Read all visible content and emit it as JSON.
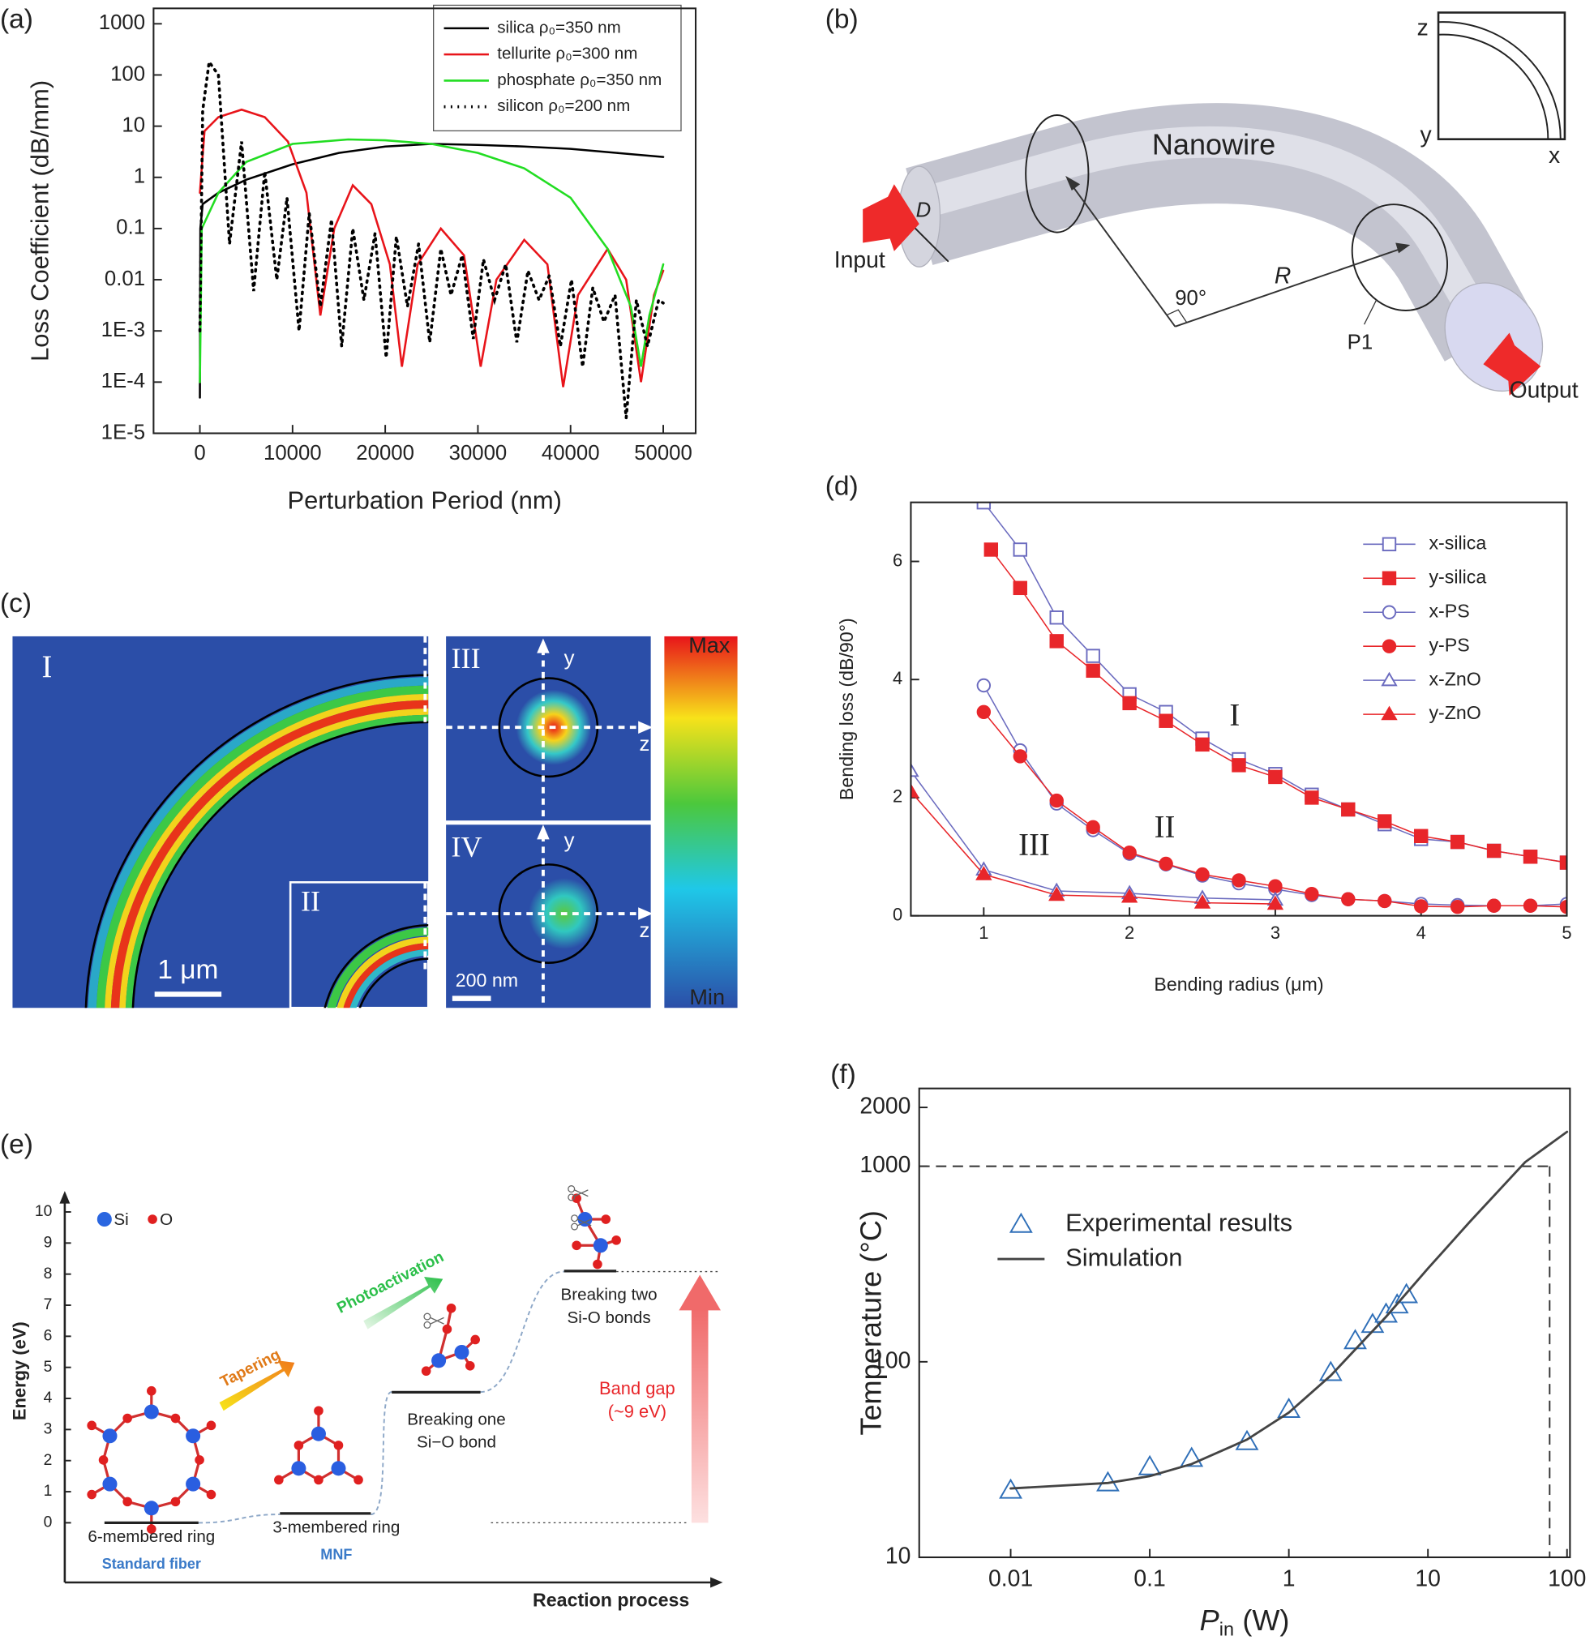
{
  "chart_data": [
    {
      "type": "line",
      "panel": "(a)",
      "xlabel": "Perturbation Period (nm)",
      "ylabel": "Loss Coefficient (dB/mm)",
      "xlim": [
        -5000,
        53500
      ],
      "ylim": [
        1e-05,
        2000
      ],
      "ylog": true,
      "xticks": [
        0,
        10000,
        20000,
        30000,
        40000,
        50000
      ],
      "yticks": [
        {
          "value": 1e-05,
          "label": "1E-5"
        },
        {
          "value": 0.0001,
          "label": "1E-4"
        },
        {
          "value": 0.001,
          "label": "1E-3"
        },
        0.01,
        0.1,
        1,
        10,
        100,
        1000
      ],
      "legend": "upper right",
      "series": [
        {
          "name": "silica ρ₀=350 nm",
          "color": "#000000",
          "linestyle": "solid",
          "marker": "none",
          "x": [
            0,
            50,
            300,
            2000,
            5000,
            10000,
            15000,
            20000,
            25000,
            30000,
            35000,
            40000,
            45000,
            50000
          ],
          "values": [
            5e-05,
            0.1,
            0.3,
            0.5,
            0.9,
            1.8,
            3,
            4,
            4.5,
            4.3,
            4,
            3.6,
            3,
            2.5
          ]
        },
        {
          "name": "tellurite ρ₀=300 nm",
          "color": "#e8141a",
          "linestyle": "solid",
          "marker": "none",
          "x": [
            0,
            500,
            2000,
            4500,
            7000,
            9500,
            11500,
            13000,
            14500,
            16500,
            18500,
            20500,
            21800,
            23500,
            26000,
            28500,
            30300,
            32000,
            35000,
            37500,
            39200,
            40800,
            44000,
            46000,
            47600,
            49000,
            50000
          ],
          "values": [
            0.5,
            8,
            15,
            21,
            15,
            5,
            0.5,
            0.002,
            0.1,
            0.7,
            0.3,
            0.02,
            0.0002,
            0.02,
            0.1,
            0.03,
            0.0002,
            0.01,
            0.06,
            0.02,
            8e-05,
            0.005,
            0.04,
            0.01,
            0.0001,
            0.005,
            0.015
          ]
        },
        {
          "name": "phosphate ρ₀=350 nm",
          "color": "#22dd22",
          "linestyle": "solid",
          "marker": "none",
          "x": [
            0,
            200,
            2000,
            5000,
            10000,
            16000,
            20000,
            25000,
            30000,
            35000,
            40000,
            44000,
            46500,
            47600,
            48500,
            50000
          ],
          "values": [
            0.0001,
            0.1,
            0.5,
            2,
            4.5,
            5.5,
            5.3,
            4.5,
            3,
            1.5,
            0.4,
            0.04,
            0.003,
            0.0002,
            0.002,
            0.02
          ]
        },
        {
          "name": "silicon ρ₀=200 nm",
          "color": "#000000",
          "linestyle": "dotted",
          "marker": "none",
          "x": [
            0,
            300,
            1000,
            2000,
            3200,
            4500,
            5800,
            7000,
            8300,
            9400,
            10700,
            11800,
            13000,
            14200,
            15300,
            16500,
            17700,
            18900,
            20100,
            21200,
            22400,
            23600,
            24800,
            26000,
            27100,
            28300,
            29500,
            30600,
            31800,
            33000,
            34200,
            35400,
            36600,
            37700,
            38900,
            40100,
            41300,
            42400,
            43600,
            44800,
            46000,
            47100,
            48300,
            49500,
            50000
          ],
          "values": [
            0.001,
            20,
            180,
            100,
            0.05,
            5,
            0.006,
            1.3,
            0.01,
            0.4,
            0.001,
            0.2,
            0.003,
            0.15,
            0.0005,
            0.1,
            0.004,
            0.08,
            0.0003,
            0.07,
            0.003,
            0.05,
            0.0006,
            0.04,
            0.005,
            0.03,
            0.0007,
            0.025,
            0.004,
            0.02,
            0.0006,
            0.015,
            0.004,
            0.012,
            0.0005,
            0.01,
            0.0002,
            0.007,
            0.0015,
            0.005,
            2e-05,
            0.004,
            0.0005,
            0.004,
            0.0035
          ]
        }
      ]
    },
    {
      "type": "line",
      "panel": "(d)",
      "xlabel": "Bending radius (μm)",
      "ylabel": "Bending loss (dB/90°)",
      "xlim": [
        0.5,
        5
      ],
      "ylim": [
        0,
        7
      ],
      "xticks": [
        1,
        2,
        3,
        4,
        5
      ],
      "yticks": [
        0,
        2,
        4,
        6
      ],
      "legend": "upper right",
      "annotations": [
        "I",
        "II",
        "III"
      ],
      "series": [
        {
          "name": "x-silica",
          "color": "#6b6bbf",
          "linestyle": "solid",
          "marker": "open-square",
          "x": [
            1,
            1.25,
            1.5,
            1.75,
            2,
            2.25,
            2.5,
            2.75,
            3,
            3.25,
            3.5,
            3.75,
            4,
            4.25,
            4.5,
            4.75,
            5
          ],
          "values": [
            7.0,
            6.2,
            5.05,
            4.4,
            3.75,
            3.45,
            3.0,
            2.65,
            2.4,
            2.05,
            1.8,
            1.55,
            1.3,
            1.25,
            1.1,
            1.0,
            0.9
          ]
        },
        {
          "name": "y-silica",
          "color": "#e8262a",
          "linestyle": "solid",
          "marker": "filled-square",
          "x": [
            1.05,
            1.25,
            1.5,
            1.75,
            2,
            2.25,
            2.5,
            2.75,
            3,
            3.25,
            3.5,
            3.75,
            4,
            4.25,
            4.5,
            4.75,
            5
          ],
          "values": [
            6.2,
            5.55,
            4.65,
            4.15,
            3.6,
            3.3,
            2.9,
            2.55,
            2.35,
            2.0,
            1.8,
            1.6,
            1.35,
            1.25,
            1.1,
            1.0,
            0.9
          ]
        },
        {
          "name": "x-PS",
          "color": "#6b6bbf",
          "linestyle": "solid",
          "marker": "open-circle",
          "x": [
            1,
            1.25,
            1.5,
            1.75,
            2,
            2.25,
            2.5,
            2.75,
            3,
            3.25,
            3.5,
            3.75,
            4,
            4.25,
            4.5,
            4.75,
            5
          ],
          "values": [
            3.9,
            2.8,
            1.9,
            1.45,
            1.05,
            0.87,
            0.68,
            0.55,
            0.45,
            0.35,
            0.28,
            0.25,
            0.2,
            0.18,
            0.17,
            0.17,
            0.2
          ]
        },
        {
          "name": "y-PS",
          "color": "#e8262a",
          "linestyle": "solid",
          "marker": "filled-circle",
          "x": [
            1,
            1.25,
            1.5,
            1.75,
            2,
            2.25,
            2.5,
            2.75,
            3,
            3.25,
            3.5,
            3.75,
            4,
            4.25,
            4.5,
            4.75,
            5
          ],
          "values": [
            3.45,
            2.7,
            1.95,
            1.5,
            1.07,
            0.88,
            0.7,
            0.6,
            0.5,
            0.37,
            0.28,
            0.25,
            0.16,
            0.15,
            0.17,
            0.17,
            0.15
          ]
        },
        {
          "name": "x-ZnO",
          "color": "#6b6bbf",
          "linestyle": "solid",
          "marker": "open-triangle",
          "x": [
            0.5,
            1,
            1.5,
            2,
            2.5,
            3
          ],
          "values": [
            2.45,
            0.78,
            0.42,
            0.38,
            0.3,
            0.27
          ]
        },
        {
          "name": "y-ZnO",
          "color": "#e8262a",
          "linestyle": "solid",
          "marker": "filled-triangle",
          "x": [
            0.5,
            1,
            1.5,
            2,
            2.5,
            3
          ],
          "values": [
            2.1,
            0.7,
            0.35,
            0.32,
            0.22,
            0.2
          ]
        }
      ]
    },
    {
      "type": "line",
      "panel": "(f)",
      "xlabel": "P",
      "xlabel_sub": "in",
      "xlabel_unit": "(W)",
      "ylabel": "Temperature (°C)",
      "xlim": [
        0.0022,
        105
      ],
      "ylim": [
        10,
        2500
      ],
      "xlog": true,
      "ylog": true,
      "xticks": [
        0.01,
        0.1,
        1,
        10,
        100
      ],
      "yticks": [
        10,
        100,
        1000,
        2000
      ],
      "legend": "upper left",
      "ref_lines": {
        "x": 75,
        "y": 1000
      },
      "series": [
        {
          "name": "Experimental results",
          "color": "#2f6fb8",
          "linestyle": "none",
          "marker": "open-triangle",
          "x": [
            0.01,
            0.05,
            0.1,
            0.2,
            0.5,
            1,
            2,
            3,
            4,
            5,
            6,
            7
          ],
          "values": [
            22,
            24,
            29,
            32,
            39,
            57,
            88,
            128,
            155,
            175,
            195,
            220
          ]
        },
        {
          "name": "Simulation",
          "color": "#444444",
          "linestyle": "solid",
          "marker": "none",
          "x": [
            0.01,
            0.05,
            0.1,
            0.2,
            0.5,
            1,
            2,
            5,
            10,
            20,
            50,
            100
          ],
          "values": [
            22.5,
            24,
            26,
            30,
            40,
            55,
            85,
            170,
            300,
            520,
            1050,
            1500
          ]
        }
      ]
    }
  ],
  "panel_b": {
    "label": "(b)",
    "title": "Nanowire",
    "input": "Input",
    "output": "Output",
    "d": "D",
    "r": "R",
    "angle": "90°",
    "point": "P1",
    "axes": [
      "z",
      "y",
      "x"
    ]
  },
  "panel_c": {
    "label": "(c)",
    "regions": [
      "I",
      "II",
      "III",
      "IV"
    ],
    "axes": [
      "y",
      "z",
      "y",
      "z"
    ],
    "scale_bars": [
      "1 μm",
      "200 nm"
    ],
    "colorbar": [
      "Max",
      "Min"
    ]
  },
  "panel_e": {
    "label": "(e)",
    "ylabel": "Energy  (eV)",
    "xlabel": "Reaction process",
    "yticks": [
      0,
      1,
      2,
      3,
      4,
      5,
      6,
      7,
      8,
      9,
      10
    ],
    "legend": [
      "Si",
      "O"
    ],
    "arrows": [
      "Tapering",
      "Photoactivation"
    ],
    "states": [
      {
        "name": [
          "6-membered ring"
        ],
        "sub": "Standard fiber",
        "energy": 0
      },
      {
        "name": [
          "3-membered ring"
        ],
        "sub": "MNF",
        "energy": 0.3
      },
      {
        "name": [
          "Breaking one",
          "Si−O bond"
        ],
        "energy": 4.2
      },
      {
        "name": [
          "Breaking two",
          "Si-O bonds"
        ],
        "energy": 8.1
      }
    ],
    "band_gap": [
      "Band gap",
      "(~9 eV)"
    ]
  }
}
